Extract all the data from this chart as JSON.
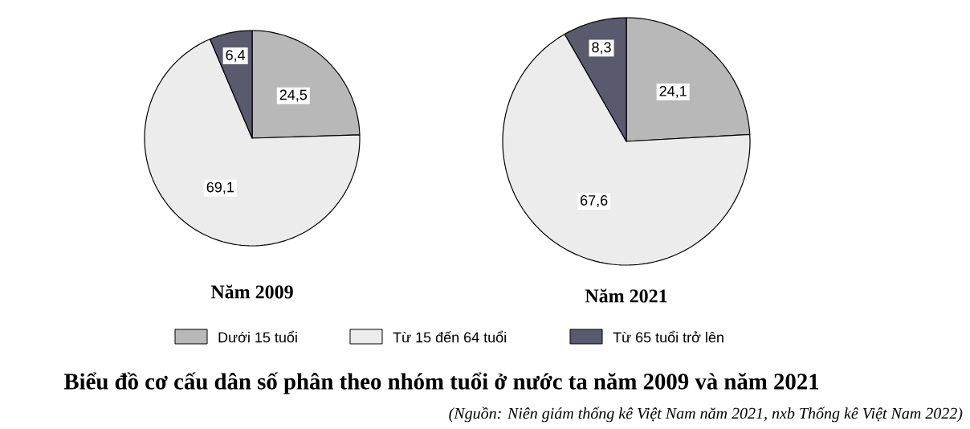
{
  "chart_data": [
    {
      "type": "pie",
      "title": "Năm 2009",
      "categories": [
        "Dưới 15 tuổi",
        "Từ 15 đến 64 tuổi",
        "Từ 65 tuổi trở lên"
      ],
      "values": [
        24.5,
        69.1,
        6.4
      ],
      "value_labels": [
        "24,5",
        "69,1",
        "6,4"
      ],
      "colors": [
        "#b8b8b8",
        "#ececec",
        "#5a5a6e"
      ],
      "legend": "bottom",
      "annotations": [
        "Biểu đồ cơ cấu dân số phân theo nhóm tuổi ở nước ta năm 2009 và năm 2021",
        "(Nguồn: Niên giám thống kê Việt Nam năm 2021, nxb Thống kê Việt Nam 2022)"
      ]
    },
    {
      "type": "pie",
      "title": "Năm 2021",
      "categories": [
        null,
        null,
        null
      ],
      "values": [
        24.1,
        67.6,
        8.3
      ],
      "value_labels": [
        "24,1",
        "67,6",
        "8,3"
      ],
      "colors": [
        "#b8b8b8",
        "#ececec",
        "#5a5a6e"
      ]
    }
  ]
}
